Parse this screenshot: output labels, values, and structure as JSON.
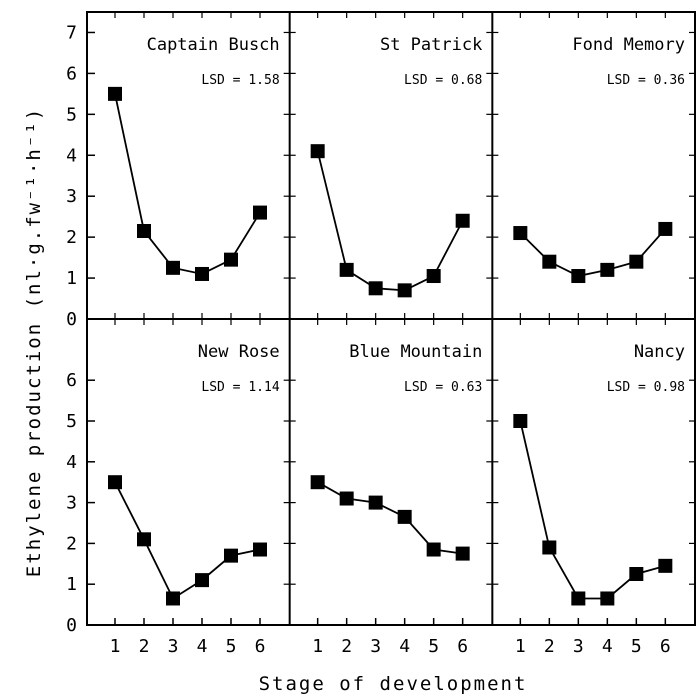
{
  "chart_data": {
    "type": "line",
    "ylabel": "Ethylene production (nl·g.fw⁻¹·h⁻¹)",
    "xlabel": "Stage of development",
    "x": [
      1,
      2,
      3,
      4,
      5,
      6
    ],
    "x_ticks": [
      "1",
      "2",
      "3",
      "4",
      "5",
      "6"
    ],
    "ylim_top_row": [
      0,
      7.5
    ],
    "ylim_bottom_row": [
      0,
      7.5
    ],
    "y_ticks_top_row": [
      "0",
      "1",
      "2",
      "3",
      "4",
      "5",
      "6",
      "7"
    ],
    "y_ticks_bottom_row": [
      "0",
      "1",
      "2",
      "3",
      "4",
      "5",
      "6"
    ],
    "panels": [
      {
        "name": "Captain Busch",
        "lsd": "LSD = 1.58",
        "values": [
          5.5,
          2.15,
          1.25,
          1.1,
          1.45,
          2.6
        ]
      },
      {
        "name": "St Patrick",
        "lsd": "LSD = 0.68",
        "values": [
          4.1,
          1.2,
          0.75,
          0.7,
          1.05,
          2.4
        ]
      },
      {
        "name": "Fond Memory",
        "lsd": "LSD = 0.36",
        "values": [
          2.1,
          1.4,
          1.05,
          1.2,
          1.4,
          2.2
        ]
      },
      {
        "name": "New Rose",
        "lsd": "LSD = 1.14",
        "values": [
          3.5,
          2.1,
          0.65,
          1.1,
          1.7,
          1.85
        ]
      },
      {
        "name": "Blue Mountain",
        "lsd": "LSD = 0.63",
        "values": [
          3.5,
          3.1,
          3.0,
          2.65,
          1.85,
          1.75
        ]
      },
      {
        "name": "Nancy",
        "lsd": "LSD = 0.98",
        "values": [
          5.0,
          1.9,
          0.65,
          0.65,
          1.25,
          1.45
        ]
      }
    ],
    "grid": false,
    "marker": "square",
    "color": "#000000"
  }
}
